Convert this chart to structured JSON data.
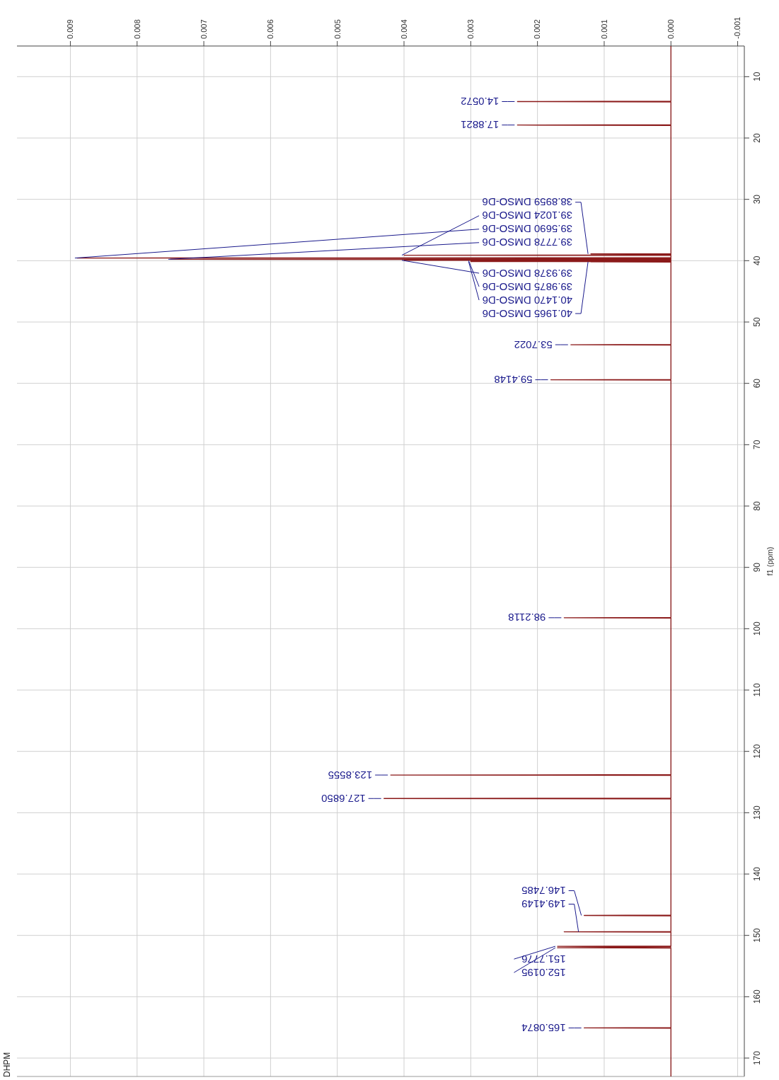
{
  "chart_data": {
    "type": "line",
    "title": "DHPM",
    "ylabel": "f1 (ppm)",
    "ylim": [
      173,
      5
    ],
    "yticks": [
      10,
      20,
      30,
      40,
      50,
      60,
      70,
      80,
      90,
      100,
      110,
      120,
      130,
      140,
      150,
      160,
      170
    ],
    "xlim": [
      0.0098,
      -0.0011
    ],
    "xticks": [
      {
        "value": 0.009,
        "label": "0.009"
      },
      {
        "value": 0.008,
        "label": "0.008"
      },
      {
        "value": 0.007,
        "label": "0.007"
      },
      {
        "value": 0.006,
        "label": "0.006"
      },
      {
        "value": 0.005,
        "label": "0.005"
      },
      {
        "value": 0.004,
        "label": "0.004"
      },
      {
        "value": 0.003,
        "label": "0.003"
      },
      {
        "value": 0.002,
        "label": "0.002"
      },
      {
        "value": 0.001,
        "label": "0.001"
      },
      {
        "value": 0,
        "label": "0.000"
      },
      {
        "value": -0.001,
        "label": "-0.001"
      }
    ],
    "grid": true,
    "marker": "none",
    "series": [
      {
        "color": "#8b1a1a",
        "values": [
          5,
          14.0,
          14.0572,
          14.12,
          17.82,
          17.8821,
          17.95,
          38.85,
          38.8959,
          38.95,
          39.06,
          39.1024,
          39.15,
          39.52,
          39.569,
          39.62,
          39.74,
          39.7778,
          39.82,
          39.91,
          39.9378,
          39.96,
          39.9875,
          40.02,
          40.12,
          40.147,
          40.17,
          40.1965,
          40.23,
          53.64,
          53.7022,
          53.76,
          59.35,
          59.4148,
          59.48,
          98.15,
          98.2118,
          98.27,
          123.79,
          123.8555,
          123.92,
          127.62,
          127.685,
          127.75,
          146.69,
          146.7485,
          146.81,
          149.35,
          149.4149,
          149.48,
          151.74,
          151.7776,
          151.9,
          152.0195,
          152.08,
          165.03,
          165.0874,
          165.15,
          173
        ],
        "x": [
          0,
          0,
          0.0023,
          0,
          0,
          0.0023,
          0,
          0,
          0.0012,
          0,
          0,
          0.004,
          0,
          0,
          0.0089,
          0,
          0,
          0.0075,
          0,
          0,
          0.004,
          0,
          0.003,
          0,
          0,
          0.003,
          0,
          0.0012,
          0,
          0,
          0.0015,
          0,
          0,
          0.0018,
          0,
          0,
          0.0016,
          0,
          0,
          0.0042,
          0,
          0,
          0.0043,
          0,
          0,
          0.0013,
          0,
          0,
          0.0016,
          0,
          0,
          0.0017,
          0,
          0.0017,
          0,
          0,
          0.0013,
          0,
          0
        ]
      }
    ],
    "annotations": [
      {
        "text": "14.0572",
        "y": 14.0572,
        "x": 0.0023
      },
      {
        "text": "17.8821",
        "y": 17.8821,
        "x": 0.0023
      },
      {
        "text": "38.8959 DMSO-D6",
        "y": 38.8959,
        "x": 0.0012
      },
      {
        "text": "39.1024 DMSO-D6",
        "y": 39.1024,
        "x": 0.004
      },
      {
        "text": "39.5690 DMSO-D6",
        "y": 39.569,
        "x": 0.0089
      },
      {
        "text": "39.7778 DMSO-D6",
        "y": 39.7778,
        "x": 0.0075
      },
      {
        "text": "39.9378 DMSO-D6",
        "y": 39.9378,
        "x": 0.004
      },
      {
        "text": "39.9875 DMSO-D6",
        "y": 39.9875,
        "x": 0.003
      },
      {
        "text": "40.1470 DMSO-D6",
        "y": 40.147,
        "x": 0.003
      },
      {
        "text": "40.1965 DMSO-D6",
        "y": 40.1965,
        "x": 0.0012
      },
      {
        "text": "53.7022",
        "y": 53.7022,
        "x": 0.0015
      },
      {
        "text": "59.4148",
        "y": 59.4148,
        "x": 0.0018
      },
      {
        "text": "98.2118",
        "y": 98.2118,
        "x": 0.0016
      },
      {
        "text": "123.8555",
        "y": 123.8555,
        "x": 0.0042
      },
      {
        "text": "127.6850",
        "y": 127.685,
        "x": 0.0043
      },
      {
        "text": "146.7485",
        "y": 146.7485,
        "x": 0.0013
      },
      {
        "text": "149.4149",
        "y": 149.4149,
        "x": 0.0016
      },
      {
        "text": "151.7776",
        "y": 151.7776,
        "x": 0.0017
      },
      {
        "text": "152.0195",
        "y": 152.0195,
        "x": 0.0017
      },
      {
        "text": "165.0874",
        "y": 165.0874,
        "x": 0.0013
      }
    ]
  }
}
